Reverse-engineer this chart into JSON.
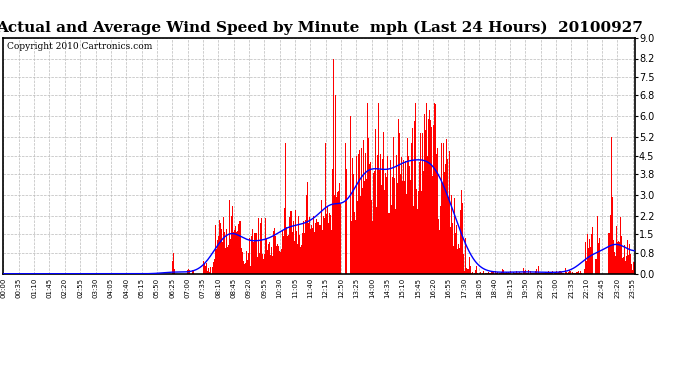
{
  "title": "Actual and Average Wind Speed by Minute  mph (Last 24 Hours)  20100927",
  "copyright": "Copyright 2010 Cartronics.com",
  "yticks": [
    0.0,
    0.8,
    1.5,
    2.2,
    3.0,
    3.8,
    4.5,
    5.2,
    6.0,
    6.8,
    7.5,
    8.2,
    9.0
  ],
  "ylim": [
    0.0,
    9.0
  ],
  "background_color": "#ffffff",
  "plot_bg_color": "#ffffff",
  "grid_color": "#bbbbbb",
  "bar_color": "#ff0000",
  "line_color": "#0000ff",
  "title_fontsize": 11,
  "copyright_fontsize": 6.5,
  "n_minutes": 1440,
  "label_step": 35
}
